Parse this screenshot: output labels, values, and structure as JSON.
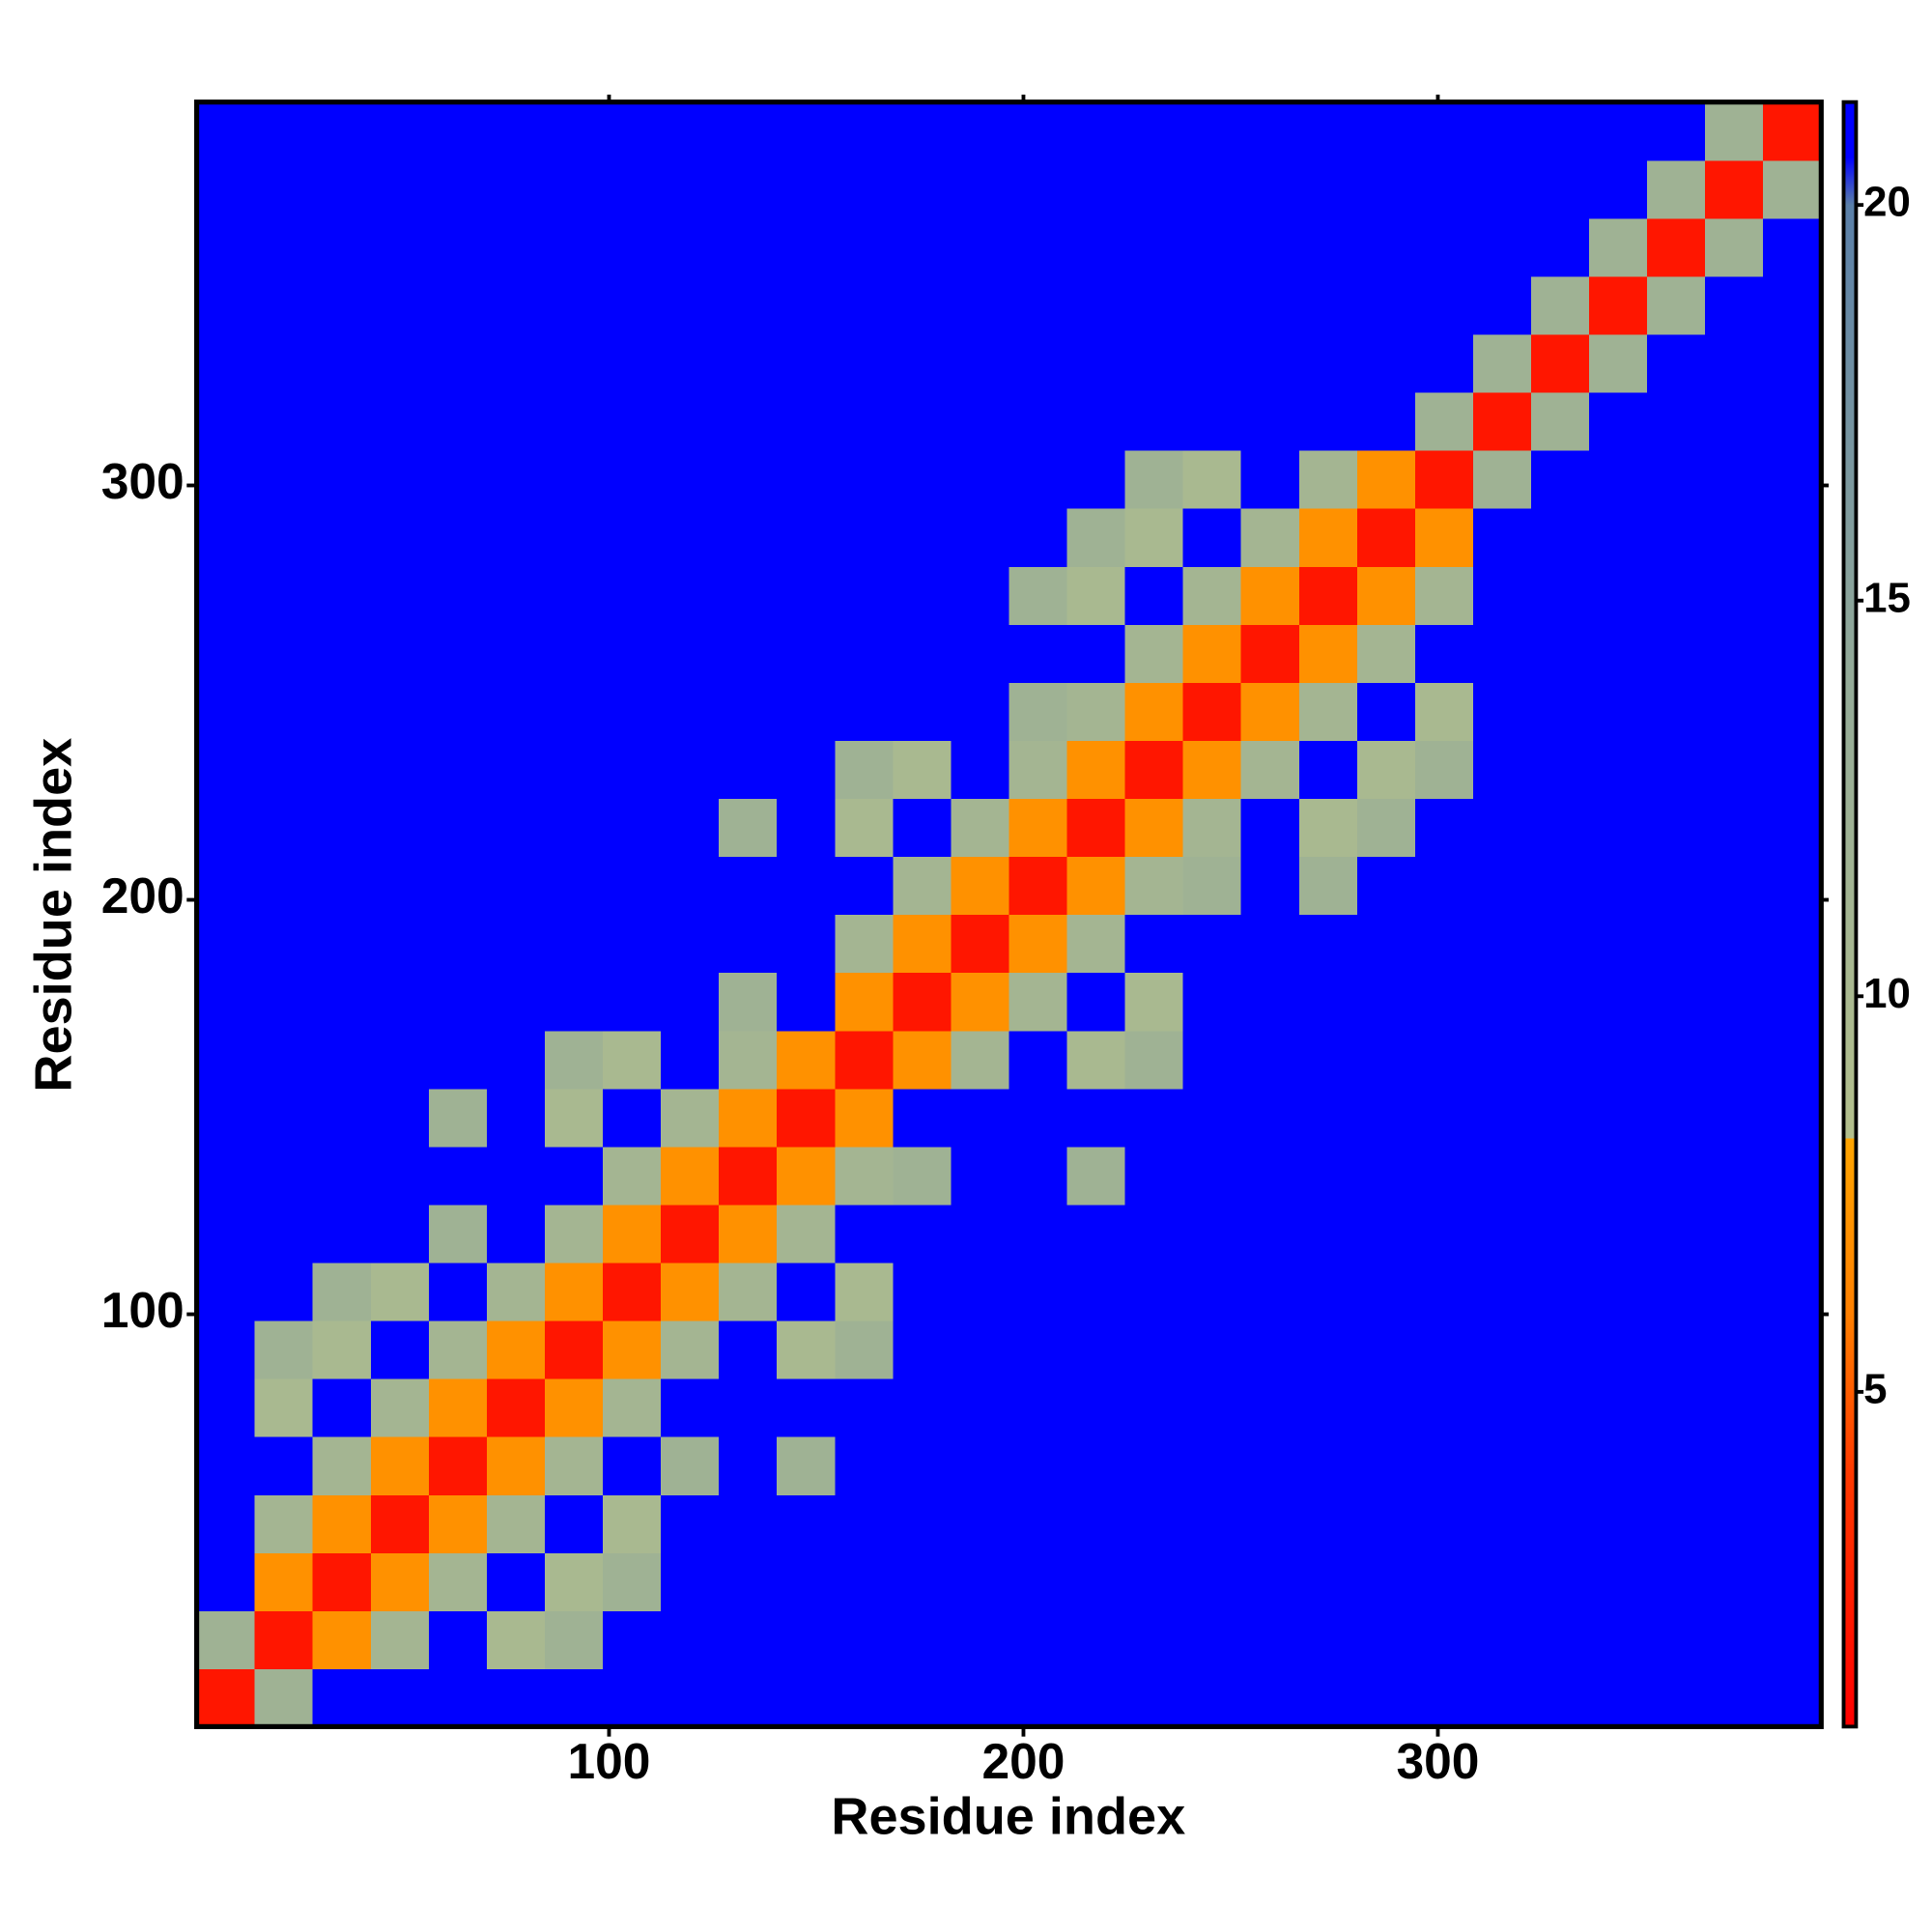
{
  "chart_data": {
    "type": "heatmap",
    "x_label": "Residue index",
    "y_label": "Residue index",
    "xlim": [
      0.5,
      392.5
    ],
    "ylim": [
      0.5,
      392.5
    ],
    "xticks": [
      100,
      200,
      300
    ],
    "yticks": [
      100,
      200,
      300
    ],
    "xbins": [
      0.5,
      14.5,
      28.5,
      42.5,
      56.5,
      70.5,
      84.5,
      98.5,
      112.5,
      126.5,
      140.5,
      154.5,
      168.5,
      182.5,
      196.5,
      210.5,
      224.5,
      238.5,
      252.5,
      266.5,
      280.5,
      294.5,
      308.5,
      322.5,
      336.5,
      350.5,
      364.5,
      378.5,
      392.5
    ],
    "ybins": [
      0.5,
      14.5,
      28.5,
      42.5,
      56.5,
      70.5,
      84.5,
      98.5,
      112.5,
      126.5,
      140.5,
      154.5,
      168.5,
      182.5,
      196.5,
      210.5,
      224.5,
      238.5,
      252.5,
      266.5,
      280.5,
      294.5,
      308.5,
      322.5,
      336.5,
      350.5,
      364.5,
      378.5,
      392.5
    ],
    "clim": [
      0.77,
      21.3
    ],
    "cticks": [
      5,
      10,
      15,
      20
    ],
    "colorscale": [
      [
        0.77,
        "#ff0000"
      ],
      [
        4,
        "#ff3a00"
      ],
      [
        6,
        "#ff8000"
      ],
      [
        8.2,
        "#ffa500"
      ],
      [
        8.2,
        "#b3bf8c"
      ],
      [
        14,
        "#94ab98"
      ],
      [
        20,
        "#5a7fa8"
      ],
      [
        20.6,
        "#0000ff"
      ],
      [
        21.3,
        "#0000ff"
      ]
    ],
    "z": [
      [
        2,
        12,
        21,
        21,
        21,
        21,
        21,
        21,
        21,
        21,
        21,
        21,
        21,
        21,
        21,
        21,
        21,
        21,
        21,
        21,
        21,
        21,
        21,
        21,
        21,
        21,
        21,
        21
      ],
      [
        12,
        2,
        7,
        11,
        21,
        10,
        12,
        21,
        21,
        21,
        21,
        21,
        21,
        21,
        21,
        21,
        21,
        21,
        21,
        21,
        21,
        21,
        21,
        21,
        21,
        21,
        21,
        21
      ],
      [
        21,
        7,
        2,
        7,
        11,
        21,
        10,
        12,
        21,
        21,
        21,
        21,
        21,
        21,
        21,
        21,
        21,
        21,
        21,
        21,
        21,
        21,
        21,
        21,
        21,
        21,
        21,
        21
      ],
      [
        21,
        11,
        7,
        2,
        7,
        11,
        21,
        10,
        21,
        21,
        21,
        21,
        21,
        21,
        21,
        21,
        21,
        21,
        21,
        21,
        21,
        21,
        21,
        21,
        21,
        21,
        21,
        21
      ],
      [
        21,
        21,
        11,
        7,
        2,
        7,
        11,
        21,
        12,
        21,
        12,
        21,
        21,
        21,
        21,
        21,
        21,
        21,
        21,
        21,
        21,
        21,
        21,
        21,
        21,
        21,
        21,
        21
      ],
      [
        21,
        10,
        21,
        11,
        7,
        2,
        7,
        11,
        21,
        21,
        21,
        21,
        21,
        21,
        21,
        21,
        21,
        21,
        21,
        21,
        21,
        21,
        21,
        21,
        21,
        21,
        21,
        21
      ],
      [
        21,
        12,
        10,
        21,
        11,
        7,
        2,
        7,
        11,
        21,
        10,
        12,
        21,
        21,
        21,
        21,
        21,
        21,
        21,
        21,
        21,
        21,
        21,
        21,
        21,
        21,
        21,
        21
      ],
      [
        21,
        21,
        12,
        10,
        21,
        11,
        7,
        2,
        7,
        11,
        21,
        10,
        21,
        21,
        21,
        21,
        21,
        21,
        21,
        21,
        21,
        21,
        21,
        21,
        21,
        21,
        21,
        21
      ],
      [
        21,
        21,
        21,
        21,
        12,
        21,
        11,
        7,
        2,
        7,
        11,
        21,
        21,
        21,
        21,
        21,
        21,
        21,
        21,
        21,
        21,
        21,
        21,
        21,
        21,
        21,
        21,
        21
      ],
      [
        21,
        21,
        21,
        21,
        21,
        21,
        21,
        11,
        7,
        2,
        7,
        11,
        12,
        21,
        21,
        12,
        21,
        21,
        21,
        21,
        21,
        21,
        21,
        21,
        21,
        21,
        21,
        21
      ],
      [
        21,
        21,
        21,
        21,
        12,
        21,
        10,
        21,
        11,
        7,
        2,
        7,
        21,
        21,
        21,
        21,
        21,
        21,
        21,
        21,
        21,
        21,
        21,
        21,
        21,
        21,
        21,
        21
      ],
      [
        21,
        21,
        21,
        21,
        21,
        21,
        12,
        10,
        21,
        11,
        7,
        2,
        7,
        11,
        21,
        10,
        12,
        21,
        21,
        21,
        21,
        21,
        21,
        21,
        21,
        21,
        21,
        21
      ],
      [
        21,
        21,
        21,
        21,
        21,
        21,
        21,
        21,
        21,
        12,
        21,
        7,
        2,
        7,
        11,
        21,
        10,
        21,
        21,
        21,
        21,
        21,
        21,
        21,
        21,
        21,
        21,
        21
      ],
      [
        21,
        21,
        21,
        21,
        21,
        21,
        21,
        21,
        21,
        21,
        21,
        11,
        7,
        2,
        7,
        11,
        21,
        21,
        21,
        21,
        21,
        21,
        21,
        21,
        21,
        21,
        21,
        21
      ],
      [
        21,
        21,
        21,
        21,
        21,
        21,
        21,
        21,
        21,
        21,
        21,
        21,
        11,
        7,
        2,
        7,
        11,
        12,
        21,
        12,
        21,
        21,
        21,
        21,
        21,
        21,
        21,
        21
      ],
      [
        21,
        21,
        21,
        21,
        21,
        21,
        21,
        21,
        21,
        12,
        21,
        10,
        21,
        11,
        7,
        2,
        7,
        11,
        21,
        10,
        12,
        21,
        21,
        21,
        21,
        21,
        21,
        21
      ],
      [
        21,
        21,
        21,
        21,
        21,
        21,
        21,
        21,
        21,
        21,
        21,
        12,
        10,
        21,
        11,
        7,
        2,
        7,
        11,
        21,
        10,
        12,
        21,
        21,
        21,
        21,
        21,
        21
      ],
      [
        21,
        21,
        21,
        21,
        21,
        21,
        21,
        21,
        21,
        21,
        21,
        21,
        21,
        21,
        12,
        11,
        7,
        2,
        7,
        11,
        21,
        10,
        21,
        21,
        21,
        21,
        21,
        21
      ],
      [
        21,
        21,
        21,
        21,
        21,
        21,
        21,
        21,
        21,
        21,
        21,
        21,
        21,
        21,
        21,
        21,
        11,
        7,
        2,
        7,
        11,
        21,
        21,
        21,
        21,
        21,
        21,
        21
      ],
      [
        21,
        21,
        21,
        21,
        21,
        21,
        21,
        21,
        21,
        21,
        21,
        21,
        21,
        21,
        12,
        10,
        21,
        11,
        7,
        2,
        7,
        11,
        21,
        21,
        21,
        21,
        21,
        21
      ],
      [
        21,
        21,
        21,
        21,
        21,
        21,
        21,
        21,
        21,
        21,
        21,
        21,
        21,
        21,
        21,
        12,
        10,
        21,
        11,
        7,
        2,
        7,
        21,
        21,
        21,
        21,
        21,
        21
      ],
      [
        21,
        21,
        21,
        21,
        21,
        21,
        21,
        21,
        21,
        21,
        21,
        21,
        21,
        21,
        21,
        21,
        12,
        10,
        21,
        11,
        7,
        2,
        12,
        21,
        21,
        21,
        21,
        21
      ],
      [
        21,
        21,
        21,
        21,
        21,
        21,
        21,
        21,
        21,
        21,
        21,
        21,
        21,
        21,
        21,
        21,
        21,
        21,
        21,
        21,
        21,
        12,
        2,
        12,
        21,
        21,
        21,
        21
      ],
      [
        21,
        21,
        21,
        21,
        21,
        21,
        21,
        21,
        21,
        21,
        21,
        21,
        21,
        21,
        21,
        21,
        21,
        21,
        21,
        21,
        21,
        21,
        12,
        2,
        12,
        21,
        21,
        21
      ],
      [
        21,
        21,
        21,
        21,
        21,
        21,
        21,
        21,
        21,
        21,
        21,
        21,
        21,
        21,
        21,
        21,
        21,
        21,
        21,
        21,
        21,
        21,
        21,
        12,
        2,
        12,
        21,
        21
      ],
      [
        21,
        21,
        21,
        21,
        21,
        21,
        21,
        21,
        21,
        21,
        21,
        21,
        21,
        21,
        21,
        21,
        21,
        21,
        21,
        21,
        21,
        21,
        21,
        21,
        12,
        2,
        12,
        21
      ],
      [
        21,
        21,
        21,
        21,
        21,
        21,
        21,
        21,
        21,
        21,
        21,
        21,
        21,
        21,
        21,
        21,
        21,
        21,
        21,
        21,
        21,
        21,
        21,
        21,
        21,
        12,
        2,
        12
      ],
      [
        21,
        21,
        21,
        21,
        21,
        21,
        21,
        21,
        21,
        21,
        21,
        21,
        21,
        21,
        21,
        21,
        21,
        21,
        21,
        21,
        21,
        21,
        21,
        21,
        21,
        21,
        12,
        2
      ]
    ]
  }
}
